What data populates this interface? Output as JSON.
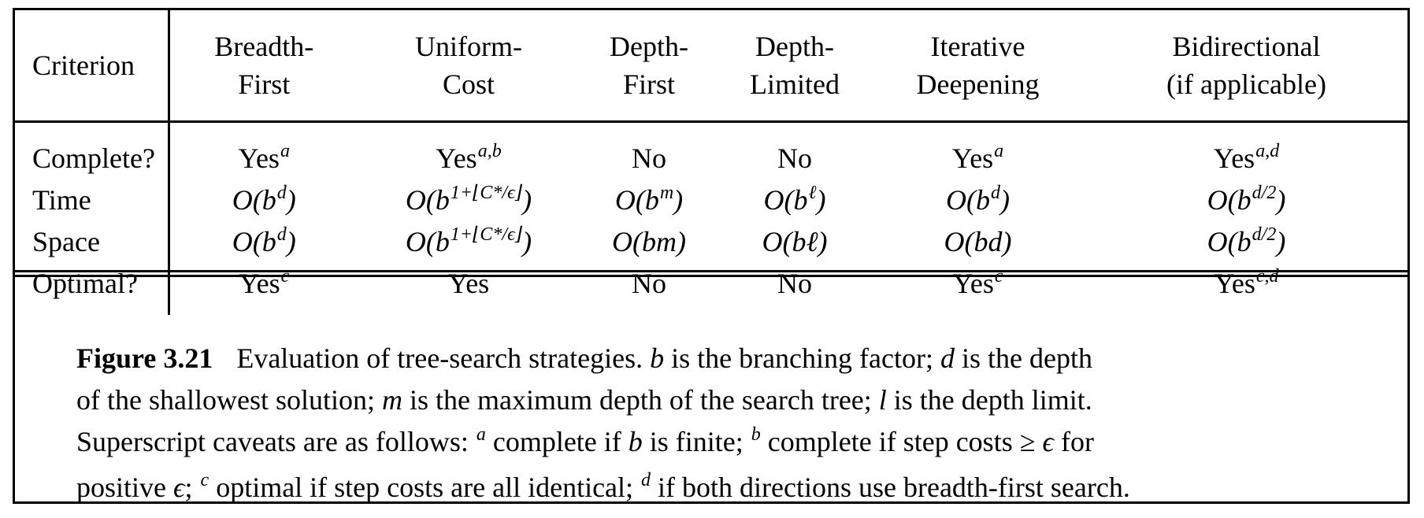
{
  "table": {
    "headers": [
      [
        "Criterion"
      ],
      [
        "Breadth-",
        "First"
      ],
      [
        "Uniform-",
        "Cost"
      ],
      [
        "Depth-",
        "First"
      ],
      [
        "Depth-",
        "Limited"
      ],
      [
        "Iterative",
        "Deepening"
      ],
      [
        "Bidirectional",
        "(if applicable)"
      ]
    ],
    "rows": [
      {
        "label": "Complete?",
        "cells": [
          {
            "t": "Yes",
            "s": "a"
          },
          {
            "t": "Yes",
            "s": "a,b"
          },
          {
            "t": "No"
          },
          {
            "t": "No"
          },
          {
            "t": "Yes",
            "s": "a"
          },
          {
            "t": "Yes",
            "s": "a,d"
          }
        ]
      },
      {
        "label": "Time",
        "cells": [
          {
            "m": "O(b",
            "s": "d",
            "e": ")"
          },
          {
            "m": "O(b",
            "s": "1+⌊C*/ϵ⌋",
            "e": ")"
          },
          {
            "m": "O(b",
            "s": "m",
            "e": ")"
          },
          {
            "m": "O(b",
            "s": "ℓ",
            "e": ")"
          },
          {
            "m": "O(b",
            "s": "d",
            "e": ")"
          },
          {
            "m": "O(b",
            "s": "d/2",
            "e": ")"
          }
        ]
      },
      {
        "label": "Space",
        "cells": [
          {
            "m": "O(b",
            "s": "d",
            "e": ")"
          },
          {
            "m": "O(b",
            "s": "1+⌊C*/ϵ⌋",
            "e": ")"
          },
          {
            "m": "O(bm)"
          },
          {
            "m": "O(bℓ)"
          },
          {
            "m": "O(bd)"
          },
          {
            "m": "O(b",
            "s": "d/2",
            "e": ")"
          }
        ]
      },
      {
        "label": "Optimal?",
        "cells": [
          {
            "t": "Yes",
            "s": "c"
          },
          {
            "t": "Yes"
          },
          {
            "t": "No"
          },
          {
            "t": "No"
          },
          {
            "t": "Yes",
            "s": "c"
          },
          {
            "t": "Yes",
            "s": "c,d"
          }
        ]
      }
    ]
  },
  "caption": {
    "label": "Figure 3.21",
    "lines": [
      [
        "Evaluation of tree-search strategies. ",
        {
          "m": "b"
        },
        " is the branching factor; ",
        {
          "m": "d"
        },
        " is the depth"
      ],
      [
        "of the shallowest solution; ",
        {
          "m": "m"
        },
        " is the maximum depth of the search tree; ",
        {
          "m": "l"
        },
        " is the depth limit."
      ],
      [
        "Superscript caveats are as follows: ",
        {
          "s": "a"
        },
        " complete if ",
        {
          "m": "b"
        },
        " is finite; ",
        {
          "s": "b"
        },
        " complete if step costs ≥ ",
        {
          "m": "ϵ"
        },
        " for"
      ],
      [
        "positive ",
        {
          "m": "ϵ"
        },
        "; ",
        {
          "s": "c"
        },
        " optimal if step costs are all identical; ",
        {
          "s": "d"
        },
        " if both directions use breadth-first search."
      ]
    ]
  }
}
